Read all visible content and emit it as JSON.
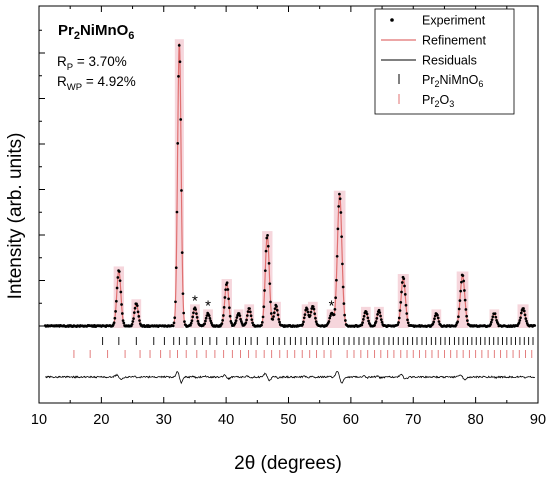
{
  "chart_data": {
    "type": "line",
    "compound": "Pr2NiMnO6",
    "compound_parts": [
      "Pr",
      "2",
      "NiMnO",
      "6"
    ],
    "rp_label": "R",
    "rp_sub": "P",
    "rp_value": " = 3.70%",
    "rwp_label": "R",
    "rwp_sub": "WP",
    "rwp_value": " = 4.92%",
    "xlabel": "2θ (degrees)",
    "ylabel": "Intensity (arb. units)",
    "xlim": [
      10,
      90
    ],
    "x_ticks": [
      10,
      20,
      30,
      40,
      50,
      60,
      70,
      80,
      90
    ],
    "y_ticks_labeled": false,
    "legend_position": "top-right",
    "legend": {
      "experiment": "Experiment",
      "refinement": "Refinement",
      "residuals": "Residuals",
      "phase1_parts": [
        "Pr",
        "2",
        "NiMnO",
        "6"
      ],
      "phase2_parts": [
        "Pr",
        "2",
        "O",
        "3"
      ]
    },
    "colors": {
      "experiment": "#000000",
      "refinement": "#e07070",
      "residuals": "#000000",
      "phase1_ticks": "#000000",
      "phase2_ticks": "#e07070",
      "peak_shade": "#f6d6dc"
    },
    "background_level": 1.0,
    "peaks": [
      {
        "x": 22.8,
        "h": 11,
        "w": 0.32
      },
      {
        "x": 25.6,
        "h": 4.5,
        "w": 0.3
      },
      {
        "x": 32.5,
        "h": 56,
        "w": 0.28
      },
      {
        "x": 35.0,
        "h": 3.5,
        "w": 0.3
      },
      {
        "x": 37.1,
        "h": 2.5,
        "w": 0.3
      },
      {
        "x": 40.1,
        "h": 8.5,
        "w": 0.32
      },
      {
        "x": 42.0,
        "h": 2.5,
        "w": 0.3
      },
      {
        "x": 43.7,
        "h": 3.5,
        "w": 0.3
      },
      {
        "x": 46.6,
        "h": 18,
        "w": 0.32
      },
      {
        "x": 48.0,
        "h": 4,
        "w": 0.3
      },
      {
        "x": 52.9,
        "h": 3.5,
        "w": 0.3
      },
      {
        "x": 53.9,
        "h": 4,
        "w": 0.3
      },
      {
        "x": 56.9,
        "h": 2.5,
        "w": 0.3
      },
      {
        "x": 58.2,
        "h": 26,
        "w": 0.36
      },
      {
        "x": 62.4,
        "h": 3,
        "w": 0.3
      },
      {
        "x": 64.5,
        "h": 3,
        "w": 0.3
      },
      {
        "x": 68.4,
        "h": 9.5,
        "w": 0.34
      },
      {
        "x": 73.7,
        "h": 2.5,
        "w": 0.3
      },
      {
        "x": 77.9,
        "h": 10,
        "w": 0.36
      },
      {
        "x": 83.0,
        "h": 2.5,
        "w": 0.3
      },
      {
        "x": 87.6,
        "h": 3.5,
        "w": 0.34
      }
    ],
    "impurity_markers": [
      {
        "x": 35.0,
        "label": "*"
      },
      {
        "x": 37.1,
        "label": "*"
      },
      {
        "x": 56.9,
        "label": "*"
      }
    ],
    "phase1_reflections": [
      20.2,
      22.8,
      25.6,
      28.4,
      30.1,
      31.6,
      32.5,
      33.7,
      35.0,
      36.2,
      37.4,
      38.5,
      40.1,
      41.2,
      42.1,
      43.1,
      44.0,
      45.0,
      46.6,
      47.6,
      48.5,
      49.4,
      50.3,
      51.1,
      52.0,
      52.9,
      53.8,
      54.6,
      55.5,
      56.4,
      57.2,
      58.0,
      58.9,
      59.7,
      60.5,
      61.3,
      62.1,
      62.9,
      63.7,
      64.5,
      65.3,
      66.1,
      66.8,
      67.6,
      68.4,
      69.1,
      69.9,
      70.6,
      71.4,
      72.1,
      72.9,
      73.6,
      74.4,
      75.1,
      75.8,
      76.6,
      77.3,
      78.0,
      78.7,
      79.4,
      80.1,
      80.8,
      81.5,
      82.2,
      82.9,
      83.6,
      84.3,
      85.0,
      85.7,
      86.4,
      87.1,
      87.8,
      88.5,
      89.2
    ],
    "phase2_reflections": [
      15.6,
      18.2,
      21.0,
      23.8,
      26.2,
      27.8,
      29.5,
      31.0,
      32.2,
      33.6,
      35.3,
      36.8,
      38.2,
      39.6,
      41.0,
      42.3,
      43.6,
      44.8,
      46.1,
      47.3,
      48.6,
      49.8,
      51.0,
      52.2,
      53.4,
      54.5,
      55.7,
      56.8,
      59.4,
      60.5,
      61.6,
      62.7,
      63.8,
      64.8,
      65.9,
      66.9,
      68.0,
      69.0,
      70.0,
      71.0,
      72.0,
      73.0,
      74.0,
      75.0,
      76.0,
      77.0,
      78.0,
      79.0,
      80.0,
      81.0,
      82.0,
      83.0,
      84.0,
      85.0,
      86.0,
      87.0,
      88.0,
      89.0
    ]
  }
}
